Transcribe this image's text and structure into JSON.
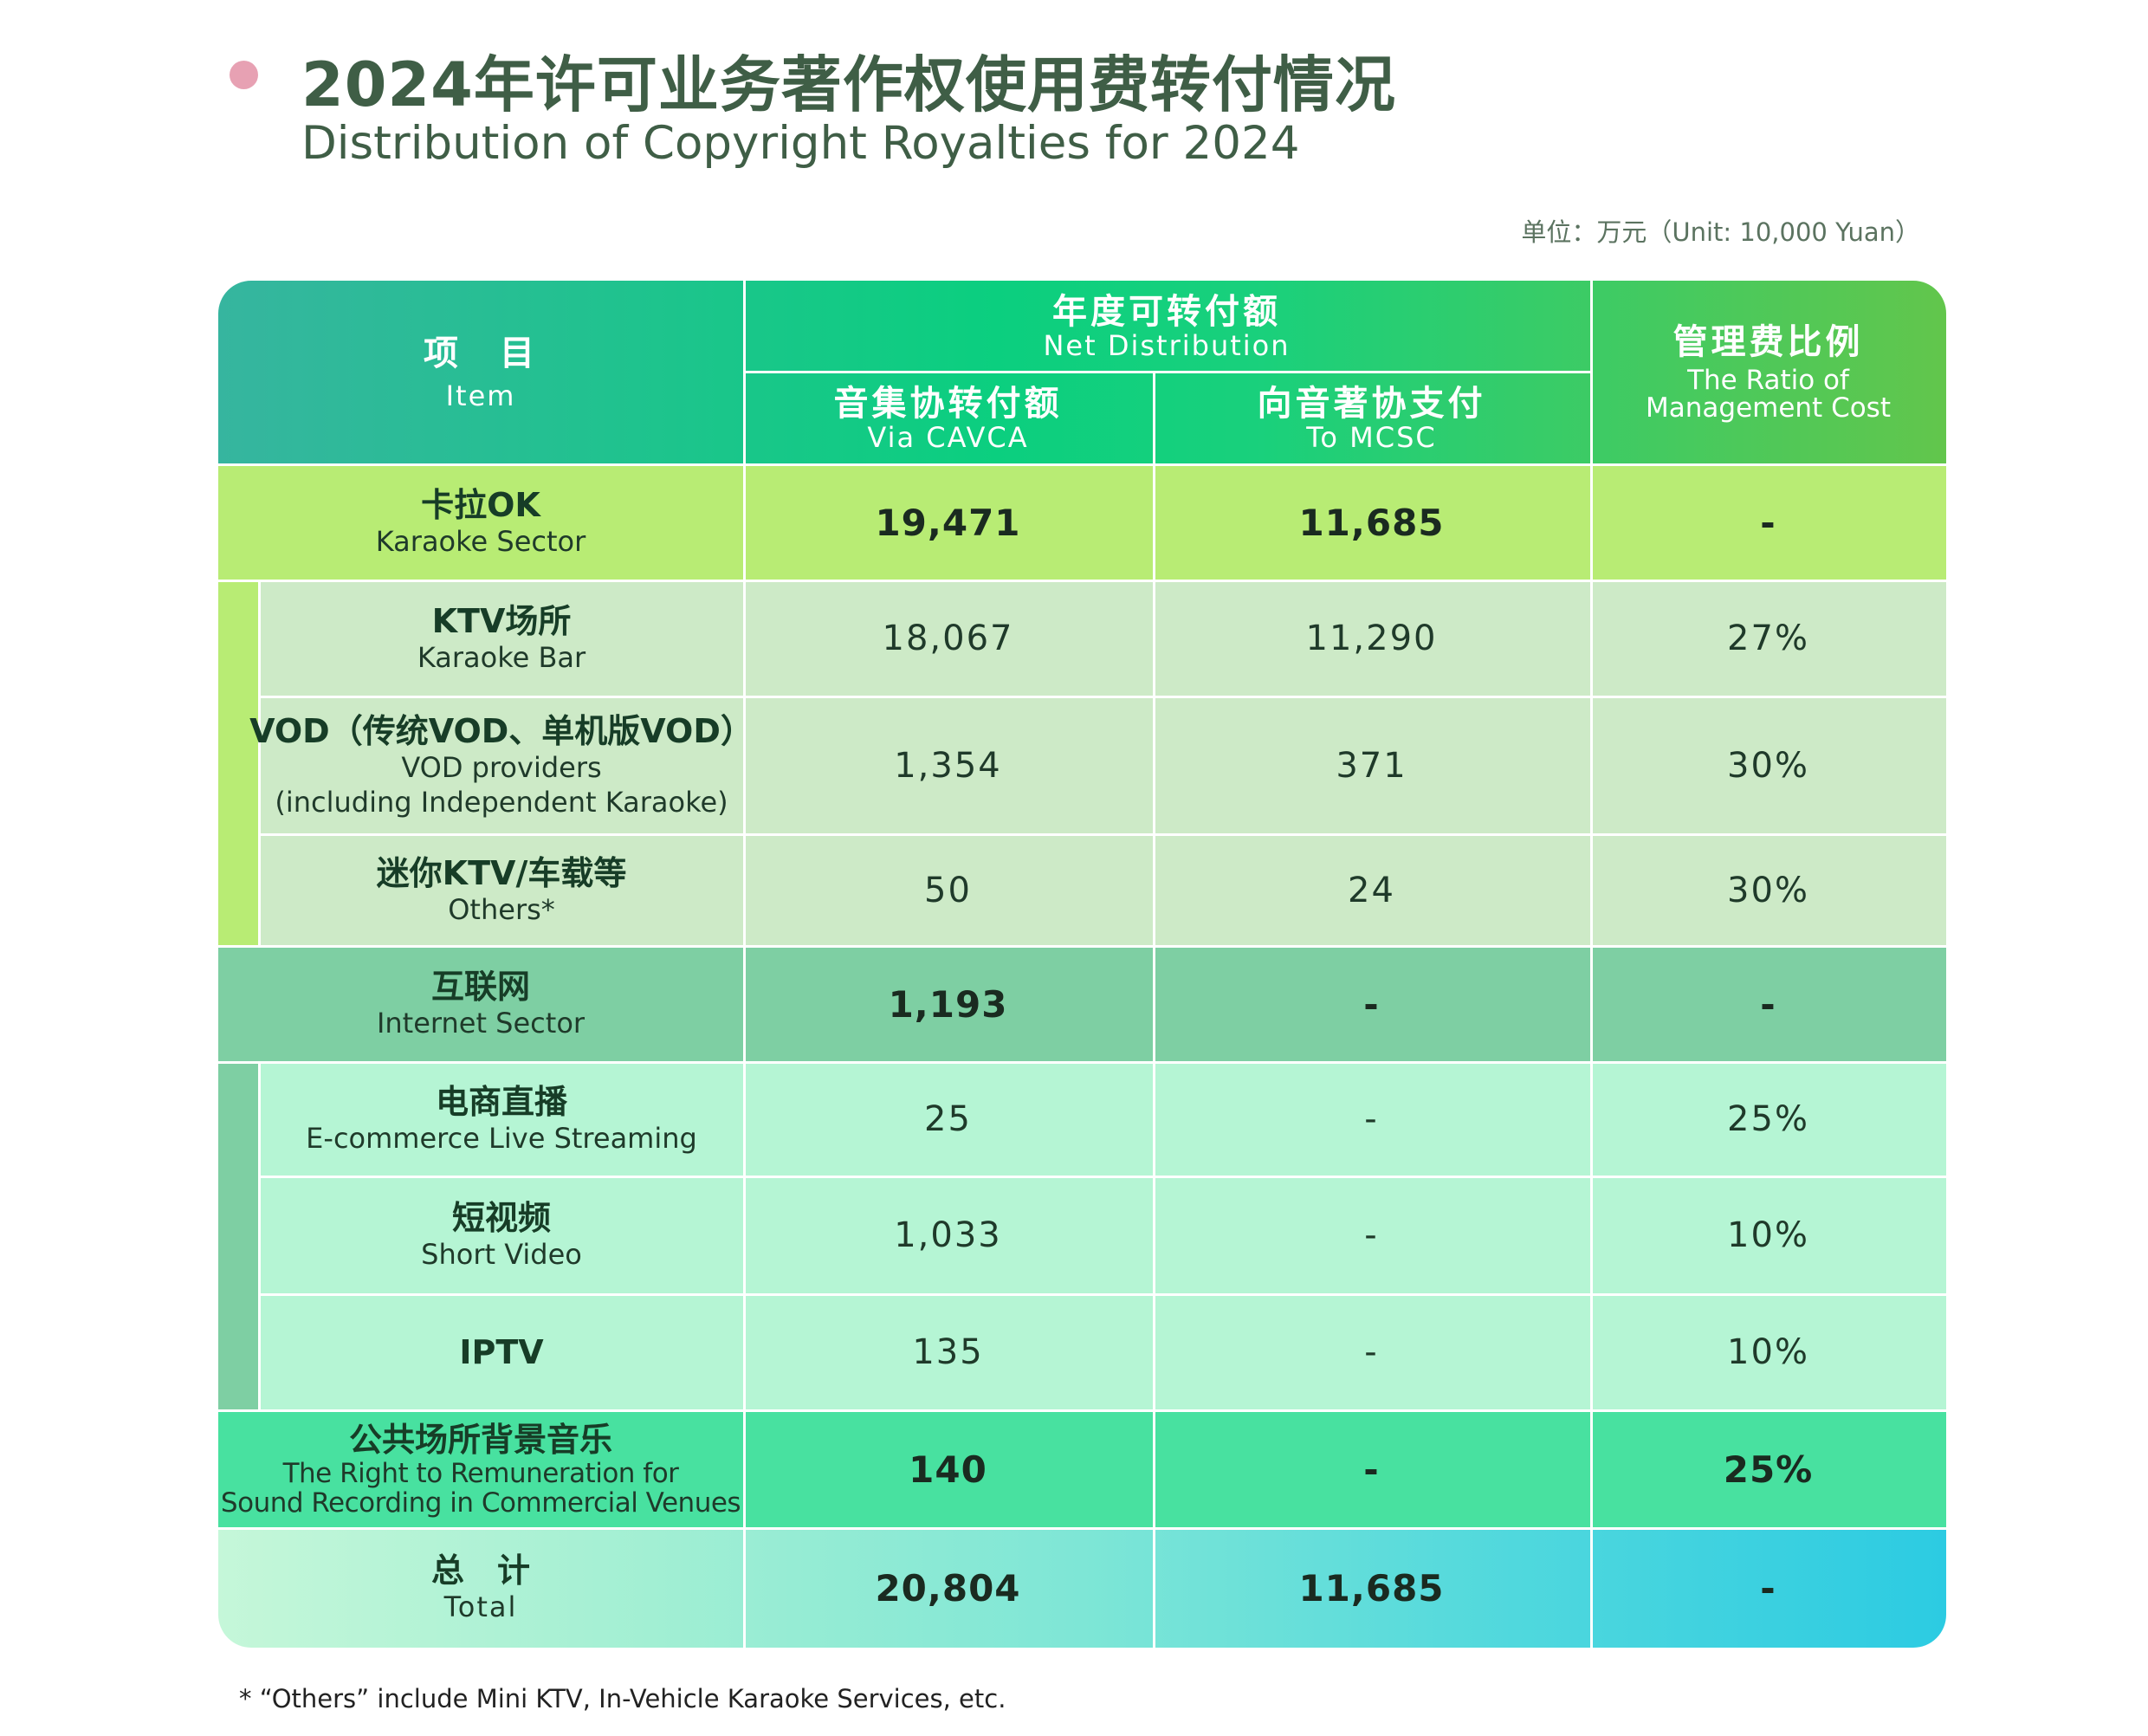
{
  "header": {
    "title_cn": "2024年许可业务著作权使用费转付情况",
    "title_en": "Distribution of Copyright Royalties for 2024",
    "unit": "单位：万元（Unit: 10,000 Yuan）"
  },
  "table": {
    "col_item_cn": "项　目",
    "col_item_en": "Item",
    "col_net_cn": "年度可转付额",
    "col_net_en": "Net Distribution",
    "col_cavca_cn": "音集协转付额",
    "col_cavca_en": "Via CAVCA",
    "col_mcsc_cn": "向音著协支付",
    "col_mcsc_en": "To MCSC",
    "col_ratio_cn": "管理费比例",
    "col_ratio_en_1": "The Ratio of",
    "col_ratio_en_2": "Management Cost",
    "rows": {
      "karaoke": {
        "cn": "卡拉OK",
        "en": "Karaoke Sector",
        "cavca": "19,471",
        "mcsc": "11,685",
        "ratio": "-"
      },
      "ktv": {
        "cn": "KTV场所",
        "en": "Karaoke Bar",
        "cavca": "18,067",
        "mcsc": "11,290",
        "ratio": "27%"
      },
      "vod": {
        "cn": "VOD（传统VOD、单机版VOD）",
        "en_1": "VOD providers",
        "en_2": "(including Independent Karaoke)",
        "cavca": "1,354",
        "mcsc": "371",
        "ratio": "30%"
      },
      "mini": {
        "cn": "迷你KTV/车载等",
        "en": "Others*",
        "cavca": "50",
        "mcsc": "24",
        "ratio": "30%"
      },
      "internet": {
        "cn": "互联网",
        "en": "Internet Sector",
        "cavca": "1,193",
        "mcsc": "-",
        "ratio": "-"
      },
      "ecom": {
        "cn": "电商直播",
        "en": "E-commerce Live Streaming",
        "cavca": "25",
        "mcsc": "-",
        "ratio": "25%"
      },
      "short": {
        "cn": "短视频",
        "en": "Short Video",
        "cavca": "1,033",
        "mcsc": "-",
        "ratio": "10%"
      },
      "iptv": {
        "cn": "IPTV",
        "cavca": "135",
        "mcsc": "-",
        "ratio": "10%"
      },
      "public": {
        "cn": "公共场所背景音乐",
        "en_1": "The Right to Remuneration for",
        "en_2": "Sound Recording in Commercial Venues",
        "cavca": "140",
        "mcsc": "-",
        "ratio": "25%"
      },
      "total": {
        "cn": "总　计",
        "en": "Total",
        "cavca": "20,804",
        "mcsc": "11,685",
        "ratio": "-"
      }
    }
  },
  "footnote": "* “Others” include Mini KTV, In-Vehicle Karaoke Services, etc.",
  "colors": {
    "header_gradient": [
      "#36b59f",
      "#0bcf7f",
      "#62c64c"
    ],
    "karaoke_row": "#b8ec74",
    "karaoke_sub": "#cdeac7",
    "internet_row": "#7ecfa3",
    "internet_sub": "#b5f5d4",
    "public_row": "#48e1a0",
    "total_gradient": [
      "#c5f7d9",
      "#8ee9d4",
      "#2ccbe2"
    ],
    "bullet": "#e7a1b3"
  }
}
